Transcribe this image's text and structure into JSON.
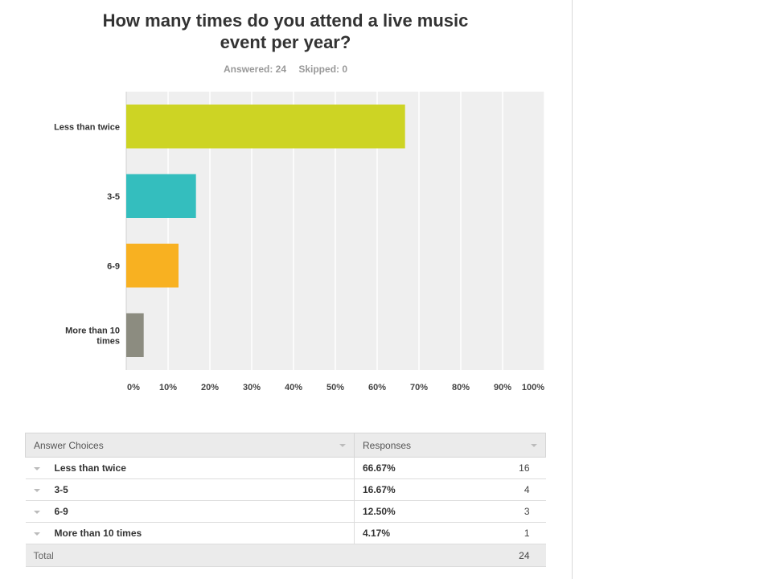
{
  "header": {
    "title": "How many times do you attend a live music event per year?",
    "answered": "Answered: 24",
    "skipped": "Skipped: 0"
  },
  "chart_data": {
    "type": "bar",
    "orientation": "horizontal",
    "categories": [
      "Less than twice",
      "3-5",
      "6-9",
      "More than 10 times"
    ],
    "values": [
      66.67,
      16.67,
      12.5,
      4.17
    ],
    "xticks": [
      "0%",
      "10%",
      "20%",
      "30%",
      "40%",
      "50%",
      "60%",
      "70%",
      "80%",
      "90%",
      "100%"
    ],
    "xlim": [
      0,
      100
    ],
    "grid": true,
    "colors": [
      "#cdd424",
      "#34bebe",
      "#f8b121",
      "#8c8c80"
    ],
    "background": "#efefef"
  },
  "table": {
    "headers": {
      "choices": "Answer Choices",
      "responses": "Responses"
    },
    "rows": [
      {
        "label": "Less than twice",
        "percent": "66.67%",
        "count": "16"
      },
      {
        "label": "3-5",
        "percent": "16.67%",
        "count": "4"
      },
      {
        "label": "6-9",
        "percent": "12.50%",
        "count": "3"
      },
      {
        "label": "More than 10 times",
        "percent": "4.17%",
        "count": "1"
      }
    ],
    "total_label": "Total",
    "total_value": "24"
  }
}
